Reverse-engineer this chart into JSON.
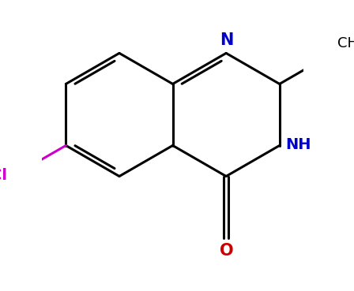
{
  "background_color": "#ffffff",
  "bond_color": "#000000",
  "n_color": "#0000cc",
  "o_color": "#cc0000",
  "cl_color": "#cc00cc",
  "lw": 2.2,
  "figsize": [
    4.48,
    3.69
  ],
  "dpi": 100,
  "scale": 1.18,
  "xlim": [
    -2.5,
    2.5
  ],
  "ylim": [
    -2.2,
    2.2
  ],
  "fs": 14
}
